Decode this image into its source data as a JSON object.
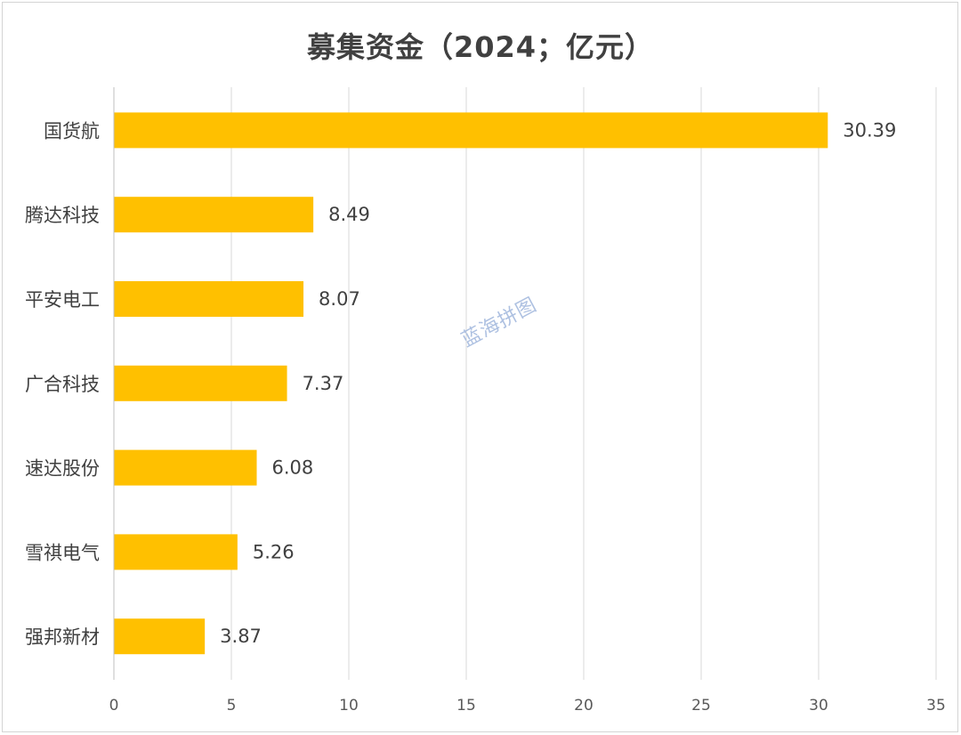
{
  "chart_data": {
    "type": "bar",
    "orientation": "horizontal",
    "title": "募集资金（2024；亿元）",
    "categories": [
      "国货航",
      "腾达科技",
      "平安电工",
      "广合科技",
      "速达股份",
      "雪祺电气",
      "强邦新材"
    ],
    "values": [
      30.39,
      8.49,
      8.07,
      7.37,
      6.08,
      5.26,
      3.87
    ],
    "data_labels": [
      "30.39",
      "8.49",
      "8.07",
      "7.37",
      "6.08",
      "5.26",
      "3.87"
    ],
    "xlim": [
      0,
      35
    ],
    "xticks": [
      "0",
      "5",
      "10",
      "15",
      "20",
      "25",
      "30",
      "35"
    ],
    "grid": "vertical",
    "bar_color": "#FFC000",
    "xlabel": "",
    "ylabel": ""
  },
  "watermark": "蓝海拼图"
}
